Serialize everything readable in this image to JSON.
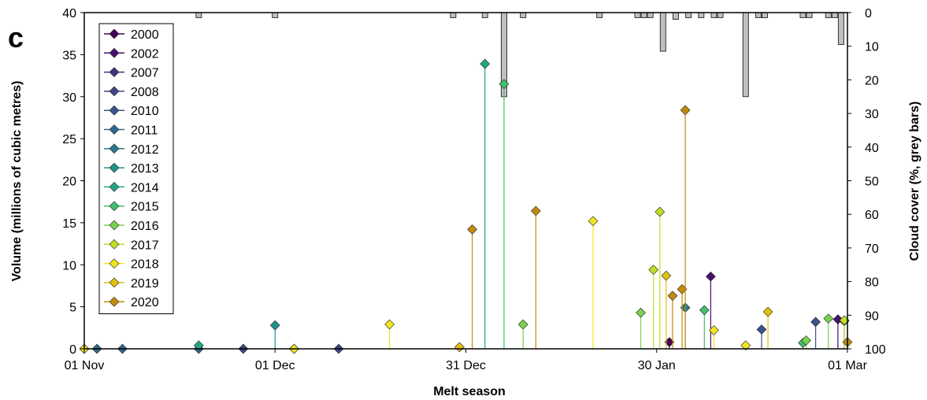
{
  "panel_label": "c",
  "chart_data": {
    "type": "stem",
    "xlabel": "Melt season",
    "ylabel": "Volume (millions of cubic metres)",
    "y2label": "Cloud cover (%, grey bars)",
    "x_range_days": [
      0,
      120
    ],
    "x_ticks": [
      {
        "day": 0,
        "label": "01 Nov"
      },
      {
        "day": 30,
        "label": "01 Dec"
      },
      {
        "day": 60,
        "label": "31 Dec"
      },
      {
        "day": 90,
        "label": "30 Jan"
      },
      {
        "day": 120,
        "label": "01 Mar"
      }
    ],
    "ylim": [
      0,
      40
    ],
    "y_ticks": [
      0,
      5,
      10,
      15,
      20,
      25,
      30,
      35,
      40
    ],
    "y2lim": [
      0,
      100
    ],
    "y2_ticks": [
      0,
      10,
      20,
      30,
      40,
      50,
      60,
      70,
      80,
      90,
      100
    ],
    "y2_inverted": true,
    "legend_position": "top-left",
    "series": [
      {
        "name": "2000",
        "color": "#440154",
        "points": [
          [
            92,
            0.8
          ]
        ]
      },
      {
        "name": "2002",
        "color": "#46106e",
        "points": [
          [
            98.5,
            8.6
          ],
          [
            118.5,
            3.5
          ]
        ]
      },
      {
        "name": "2007",
        "color": "#472f7d",
        "points": [
          [
            119.5,
            3.3
          ]
        ]
      },
      {
        "name": "2008",
        "color": "#414487",
        "points": [
          [
            0,
            0
          ],
          [
            25,
            0
          ],
          [
            40,
            0
          ]
        ]
      },
      {
        "name": "2010",
        "color": "#3b528b",
        "points": [
          [
            106.5,
            2.3
          ],
          [
            115,
            3.2
          ]
        ]
      },
      {
        "name": "2011",
        "color": "#31688e",
        "points": [
          [
            2,
            0
          ],
          [
            6,
            0
          ],
          [
            18,
            0
          ],
          [
            33,
            0
          ]
        ]
      },
      {
        "name": "2012",
        "color": "#2a788e",
        "points": [
          [
            94.5,
            4.9
          ]
        ]
      },
      {
        "name": "2013",
        "color": "#21918c",
        "points": [
          [
            30,
            2.8
          ]
        ]
      },
      {
        "name": "2014",
        "color": "#22a884",
        "points": [
          [
            18,
            0.4
          ],
          [
            63,
            33.9
          ]
        ]
      },
      {
        "name": "2015",
        "color": "#44bf70",
        "points": [
          [
            66,
            31.5
          ],
          [
            97.5,
            4.6
          ],
          [
            113,
            0.7
          ]
        ]
      },
      {
        "name": "2016",
        "color": "#7ad151",
        "points": [
          [
            69,
            2.9
          ],
          [
            87.5,
            4.3
          ],
          [
            113.5,
            1.0
          ],
          [
            117,
            3.6
          ]
        ]
      },
      {
        "name": "2017",
        "color": "#bddf26",
        "points": [
          [
            89.5,
            9.4
          ],
          [
            90.5,
            16.3
          ],
          [
            119.5,
            3.4
          ]
        ]
      },
      {
        "name": "2018",
        "color": "#f1e51d",
        "points": [
          [
            0,
            0
          ],
          [
            33,
            0
          ],
          [
            48,
            2.9
          ],
          [
            80,
            15.2
          ],
          [
            99,
            2.2
          ],
          [
            104,
            0.4
          ]
        ]
      },
      {
        "name": "2019",
        "color": "#e3c00d",
        "points": [
          [
            59,
            0.2
          ],
          [
            91.5,
            8.7
          ],
          [
            107.5,
            4.4
          ]
        ]
      },
      {
        "name": "2020",
        "color": "#c28a0b",
        "points": [
          [
            61,
            14.2
          ],
          [
            71,
            16.4
          ],
          [
            92.5,
            6.3
          ],
          [
            94,
            7.1
          ],
          [
            94.5,
            28.4
          ],
          [
            120,
            0.8
          ]
        ]
      }
    ],
    "cloud_cover_bars": [
      {
        "day": 18,
        "value": 1.5
      },
      {
        "day": 30,
        "value": 1.5
      },
      {
        "day": 58,
        "value": 1.5
      },
      {
        "day": 63,
        "value": 1.5
      },
      {
        "day": 66,
        "value": 25
      },
      {
        "day": 69,
        "value": 1.5
      },
      {
        "day": 81,
        "value": 1.5
      },
      {
        "day": 87,
        "value": 1.5
      },
      {
        "day": 88,
        "value": 1.5
      },
      {
        "day": 89,
        "value": 1.5
      },
      {
        "day": 91,
        "value": 11.5
      },
      {
        "day": 93,
        "value": 2
      },
      {
        "day": 95,
        "value": 1.5
      },
      {
        "day": 97,
        "value": 1.5
      },
      {
        "day": 99,
        "value": 1.5
      },
      {
        "day": 100,
        "value": 1.5
      },
      {
        "day": 104,
        "value": 25
      },
      {
        "day": 106,
        "value": 1.5
      },
      {
        "day": 107,
        "value": 1.5
      },
      {
        "day": 113,
        "value": 1.5
      },
      {
        "day": 114,
        "value": 1.5
      },
      {
        "day": 117,
        "value": 1.5
      },
      {
        "day": 118,
        "value": 1.5
      },
      {
        "day": 119,
        "value": 9.5
      }
    ]
  }
}
